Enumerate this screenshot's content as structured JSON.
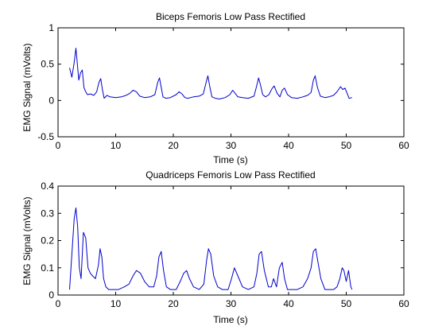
{
  "chart_data": [
    {
      "type": "line",
      "title": "Biceps Femoris Low Pass Rectified",
      "xlabel": "Time (s)",
      "ylabel": "EMG Signal (mVolts)",
      "xlim": [
        0,
        60
      ],
      "ylim": [
        -0.5,
        1
      ],
      "xticks": [
        0,
        10,
        20,
        30,
        40,
        50,
        60
      ],
      "yticks": [
        -0.5,
        0,
        0.5,
        1
      ],
      "xtick_labels": [
        "0",
        "10",
        "20",
        "30",
        "40",
        "50",
        "60"
      ],
      "ytick_labels": [
        "-0.5",
        "0",
        "0.5",
        "1"
      ],
      "grid": false,
      "color": "#0000cc",
      "series": [
        {
          "x": [
            2.0,
            2.4,
            2.8,
            3.1,
            3.3,
            3.6,
            3.9,
            4.2,
            4.5,
            4.8,
            5.1,
            5.6,
            6.2,
            6.7,
            7.1,
            7.4,
            7.7,
            8.0,
            8.5,
            9.0,
            10.0,
            11.0,
            11.8,
            12.5,
            13.0,
            13.6,
            14.2,
            15.0,
            16.0,
            16.8,
            17.3,
            17.6,
            17.9,
            18.2,
            18.7,
            19.5,
            20.5,
            21.0,
            21.5,
            22.0,
            22.5,
            23.5,
            24.5,
            25.2,
            25.7,
            26.0,
            26.3,
            26.7,
            27.3,
            28.0,
            29.0,
            29.8,
            30.3,
            30.7,
            31.2,
            32.0,
            33.0,
            34.0,
            34.4,
            34.8,
            35.1,
            35.5,
            36.0,
            36.6,
            37.1,
            37.5,
            38.0,
            38.5,
            38.9,
            39.3,
            39.8,
            40.5,
            41.5,
            42.5,
            43.3,
            43.9,
            44.3,
            44.6,
            45.0,
            45.5,
            46.3,
            47.0,
            47.8,
            48.4,
            49.0,
            49.4,
            49.8,
            50.1,
            50.5,
            51.0
          ],
          "y": [
            0.45,
            0.32,
            0.52,
            0.72,
            0.55,
            0.28,
            0.38,
            0.42,
            0.18,
            0.12,
            0.08,
            0.09,
            0.07,
            0.12,
            0.25,
            0.3,
            0.15,
            0.03,
            0.07,
            0.05,
            0.04,
            0.05,
            0.07,
            0.1,
            0.14,
            0.12,
            0.06,
            0.04,
            0.05,
            0.08,
            0.25,
            0.31,
            0.18,
            0.05,
            0.03,
            0.04,
            0.08,
            0.12,
            0.09,
            0.04,
            0.03,
            0.05,
            0.06,
            0.09,
            0.25,
            0.34,
            0.2,
            0.05,
            0.03,
            0.02,
            0.04,
            0.08,
            0.14,
            0.1,
            0.05,
            0.04,
            0.03,
            0.06,
            0.18,
            0.31,
            0.22,
            0.08,
            0.05,
            0.08,
            0.16,
            0.2,
            0.1,
            0.05,
            0.14,
            0.17,
            0.08,
            0.04,
            0.03,
            0.05,
            0.07,
            0.11,
            0.28,
            0.34,
            0.18,
            0.06,
            0.04,
            0.05,
            0.07,
            0.12,
            0.19,
            0.15,
            0.17,
            0.11,
            0.03,
            0.04
          ]
        }
      ]
    },
    {
      "type": "line",
      "title": "Quadriceps Femoris Low Pass Rectified",
      "xlabel": "Time (s)",
      "ylabel": "EMG Signal (mVolts)",
      "xlim": [
        0,
        60
      ],
      "ylim": [
        0,
        0.4
      ],
      "xticks": [
        0,
        10,
        20,
        30,
        40,
        50,
        60
      ],
      "yticks": [
        0,
        0.1,
        0.2,
        0.3,
        0.4
      ],
      "xtick_labels": [
        "0",
        "10",
        "20",
        "30",
        "40",
        "50",
        "60"
      ],
      "ytick_labels": [
        "0",
        "0.1",
        "0.2",
        "0.3",
        "0.4"
      ],
      "grid": false,
      "color": "#0000cc",
      "series": [
        {
          "x": [
            2.0,
            2.4,
            2.8,
            3.1,
            3.4,
            3.7,
            4.0,
            4.4,
            4.8,
            5.2,
            5.6,
            6.0,
            6.5,
            7.0,
            7.3,
            7.6,
            7.9,
            8.3,
            8.8,
            9.5,
            10.5,
            11.5,
            12.3,
            13.0,
            13.6,
            14.3,
            15.0,
            15.8,
            16.6,
            17.1,
            17.5,
            17.9,
            18.3,
            18.8,
            19.5,
            20.5,
            21.2,
            21.8,
            22.3,
            22.8,
            23.5,
            24.5,
            25.3,
            25.8,
            26.1,
            26.5,
            27.0,
            27.7,
            28.5,
            29.5,
            30.1,
            30.6,
            31.2,
            32.0,
            33.0,
            34.0,
            34.5,
            34.9,
            35.3,
            35.8,
            36.5,
            37.0,
            37.4,
            37.9,
            38.4,
            38.9,
            39.3,
            39.8,
            40.5,
            41.5,
            42.5,
            43.3,
            43.9,
            44.3,
            44.7,
            45.1,
            45.6,
            46.3,
            47.0,
            47.8,
            48.4,
            48.9,
            49.3,
            49.6,
            50.0,
            50.4,
            50.8,
            51.0
          ],
          "y": [
            0.02,
            0.15,
            0.28,
            0.32,
            0.25,
            0.1,
            0.06,
            0.23,
            0.21,
            0.1,
            0.08,
            0.07,
            0.06,
            0.11,
            0.17,
            0.14,
            0.06,
            0.03,
            0.02,
            0.02,
            0.02,
            0.03,
            0.04,
            0.07,
            0.09,
            0.08,
            0.05,
            0.03,
            0.03,
            0.07,
            0.14,
            0.16,
            0.09,
            0.03,
            0.02,
            0.02,
            0.05,
            0.08,
            0.09,
            0.06,
            0.03,
            0.02,
            0.04,
            0.13,
            0.17,
            0.15,
            0.07,
            0.03,
            0.02,
            0.02,
            0.06,
            0.1,
            0.07,
            0.03,
            0.02,
            0.03,
            0.08,
            0.15,
            0.16,
            0.09,
            0.03,
            0.03,
            0.06,
            0.03,
            0.1,
            0.12,
            0.06,
            0.02,
            0.02,
            0.02,
            0.03,
            0.06,
            0.1,
            0.16,
            0.17,
            0.12,
            0.06,
            0.02,
            0.02,
            0.02,
            0.03,
            0.06,
            0.1,
            0.09,
            0.05,
            0.09,
            0.03,
            0.02
          ]
        }
      ]
    }
  ]
}
